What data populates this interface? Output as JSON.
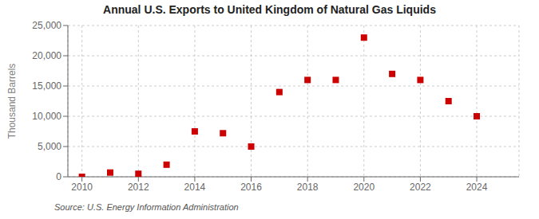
{
  "chart_data": {
    "type": "scatter",
    "title": "Annual U.S. Exports to United Kingdom of Natural Gas Liquids",
    "y_label": "Thousand Barrels",
    "annotations": [
      "Source: U.S. Energy Information Administration"
    ],
    "x": [
      2010,
      2011,
      2012,
      2013,
      2014,
      2015,
      2016,
      2017,
      2018,
      2019,
      2020,
      2021,
      2022,
      2023,
      2024
    ],
    "values": [
      0,
      700,
      500,
      2000,
      7500,
      7200,
      5000,
      14000,
      16000,
      16000,
      23000,
      17000,
      16000,
      12500,
      10000
    ],
    "color": "#cc0000",
    "marker": "square",
    "xlim": [
      2009.5,
      2025.5
    ],
    "xticks": [
      2010,
      2012,
      2014,
      2016,
      2018,
      2020,
      2022,
      2024
    ],
    "ylim": [
      0,
      25000
    ],
    "yticks": [
      0,
      {
        "value": 5000,
        "label": "5,000"
      },
      {
        "value": 10000,
        "label": "10,000"
      },
      {
        "value": 15000,
        "label": "15,000"
      },
      {
        "value": 20000,
        "label": "20,000"
      },
      {
        "value": 25000,
        "label": "25,000"
      }
    ],
    "grid": true
  }
}
